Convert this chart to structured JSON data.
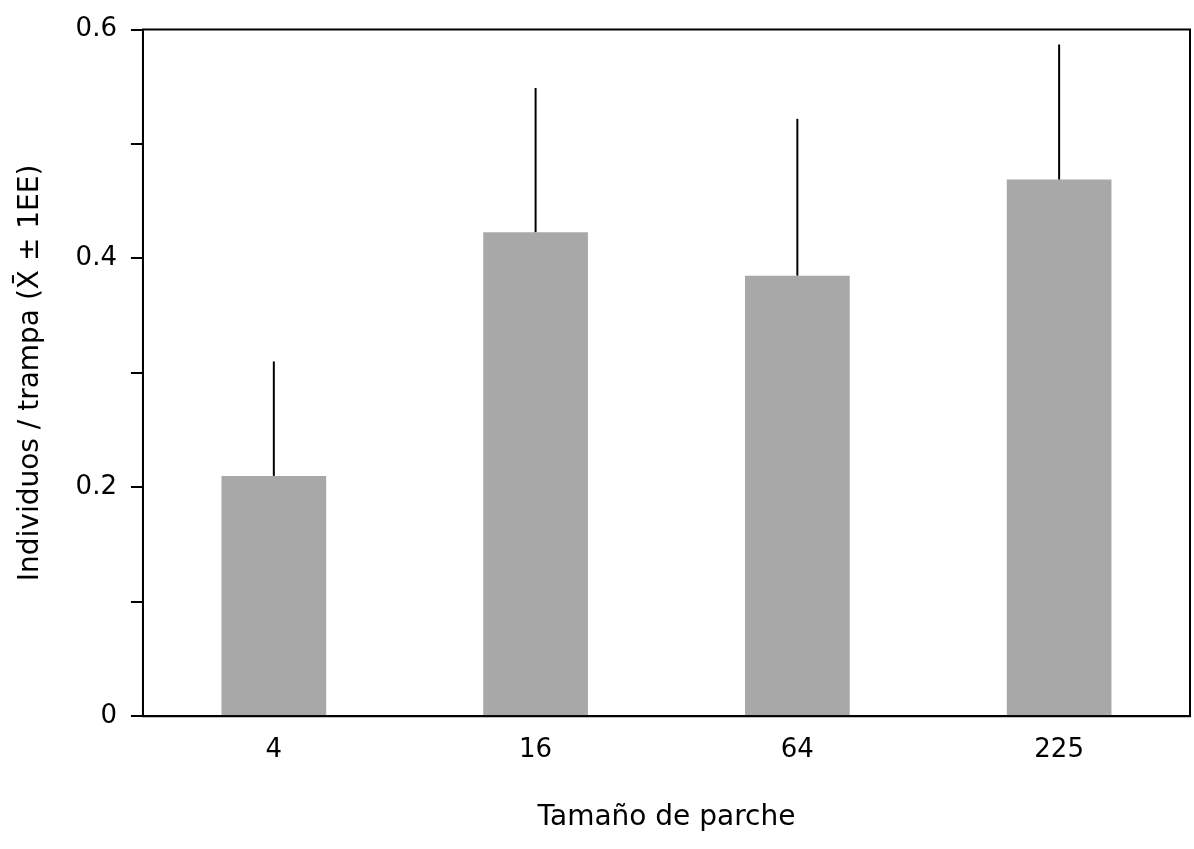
{
  "chart_data": {
    "type": "bar",
    "xlabel": "Tamaño de parche",
    "ylabel": "Individuos / trampa (X̄ ± 1EE)",
    "categories": [
      "4",
      "16",
      "64",
      "225"
    ],
    "values": [
      0.21,
      0.423,
      0.385,
      0.469
    ],
    "errors": [
      [
        0.21,
        0.31
      ],
      [
        0.423,
        0.549
      ],
      [
        0.385,
        0.522
      ],
      [
        0.469,
        0.587
      ]
    ],
    "color": "#a8a8a8",
    "ylim": [
      0,
      0.6
    ],
    "yticks": [
      0,
      {
        "value": 0.1,
        "label": null
      },
      {
        "value": 0.2,
        "label": "0.2"
      },
      {
        "value": 0.3,
        "label": null
      },
      {
        "value": 0.4,
        "label": "0.4"
      },
      {
        "value": 0.5,
        "label": null
      },
      {
        "value": 0.6,
        "label": "0.6"
      }
    ],
    "grid": false,
    "legend": false
  }
}
